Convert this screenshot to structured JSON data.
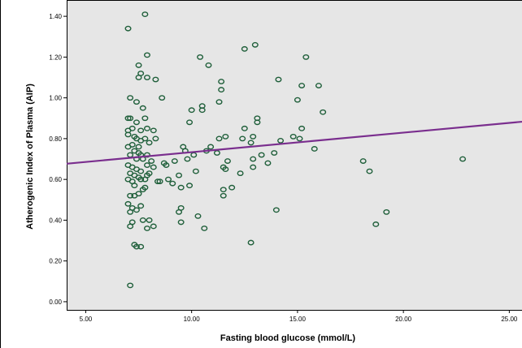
{
  "chart_data": {
    "type": "scatter",
    "xlabel": "Fasting blood glucose (mmol/L)",
    "ylabel": "Atherogenic Index of Plasma (AIP)",
    "xlim": [
      4.1,
      25.6
    ],
    "ylim": [
      -0.04,
      1.48
    ],
    "x_ticks": [
      5.0,
      10.0,
      15.0,
      20.0,
      25.0
    ],
    "x_tick_labels": [
      "5.00",
      "10.00",
      "15.00",
      "20.00",
      "25.00"
    ],
    "y_ticks": [
      0.0,
      0.2,
      0.4,
      0.6,
      0.8,
      1.0,
      1.2,
      1.4
    ],
    "y_tick_labels": [
      "0.00",
      "0.20",
      "0.40",
      "0.60",
      "0.80",
      "1.00",
      "1.20",
      "1.40"
    ],
    "grid": false,
    "colors": {
      "points": "#1f5f3a",
      "fit_line": "#7a2e8e",
      "plot_bg": "#e6e6e6"
    },
    "fit_line": {
      "x": [
        4.1,
        25.6
      ],
      "y": [
        0.677,
        0.883
      ]
    },
    "points": [
      [
        7.0,
        1.34
      ],
      [
        7.8,
        1.41
      ],
      [
        7.9,
        1.21
      ],
      [
        7.5,
        1.16
      ],
      [
        7.6,
        1.12
      ],
      [
        7.9,
        1.1
      ],
      [
        7.5,
        1.1
      ],
      [
        8.3,
        1.09
      ],
      [
        7.1,
        1.0
      ],
      [
        8.6,
        1.0
      ],
      [
        7.4,
        0.98
      ],
      [
        7.7,
        0.95
      ],
      [
        7.0,
        0.9
      ],
      [
        7.1,
        0.9
      ],
      [
        7.4,
        0.88
      ],
      [
        7.6,
        0.84
      ],
      [
        7.8,
        0.9
      ],
      [
        7.9,
        0.85
      ],
      [
        8.2,
        0.84
      ],
      [
        7.2,
        0.85
      ],
      [
        7.0,
        0.84
      ],
      [
        7.0,
        0.82
      ],
      [
        7.3,
        0.81
      ],
      [
        7.4,
        0.8
      ],
      [
        7.6,
        0.79
      ],
      [
        7.8,
        0.8
      ],
      [
        8.0,
        0.78
      ],
      [
        7.2,
        0.77
      ],
      [
        7.5,
        0.76
      ],
      [
        8.3,
        0.8
      ],
      [
        7.0,
        0.76
      ],
      [
        7.3,
        0.74
      ],
      [
        7.5,
        0.73
      ],
      [
        7.6,
        0.72
      ],
      [
        7.9,
        0.72
      ],
      [
        7.1,
        0.72
      ],
      [
        7.4,
        0.7
      ],
      [
        7.7,
        0.7
      ],
      [
        8.1,
        0.69
      ],
      [
        7.0,
        0.67
      ],
      [
        7.2,
        0.66
      ],
      [
        7.4,
        0.65
      ],
      [
        7.6,
        0.64
      ],
      [
        7.9,
        0.67
      ],
      [
        8.2,
        0.66
      ],
      [
        7.1,
        0.63
      ],
      [
        7.3,
        0.62
      ],
      [
        7.5,
        0.61
      ],
      [
        7.8,
        0.6
      ],
      [
        8.0,
        0.63
      ],
      [
        7.0,
        0.6
      ],
      [
        7.2,
        0.59
      ],
      [
        7.6,
        0.6
      ],
      [
        7.8,
        0.56
      ],
      [
        7.1,
        0.52
      ],
      [
        7.3,
        0.52
      ],
      [
        7.5,
        0.53
      ],
      [
        7.7,
        0.55
      ],
      [
        7.0,
        0.48
      ],
      [
        7.2,
        0.46
      ],
      [
        7.1,
        0.44
      ],
      [
        7.4,
        0.45
      ],
      [
        7.6,
        0.47
      ],
      [
        7.7,
        0.4
      ],
      [
        7.9,
        0.36
      ],
      [
        8.2,
        0.37
      ],
      [
        7.2,
        0.39
      ],
      [
        7.1,
        0.37
      ],
      [
        7.3,
        0.28
      ],
      [
        7.4,
        0.27
      ],
      [
        7.6,
        0.27
      ],
      [
        7.1,
        0.08
      ],
      [
        8.4,
        0.59
      ],
      [
        8.5,
        0.59
      ],
      [
        8.7,
        0.68
      ],
      [
        8.8,
        0.67
      ],
      [
        8.9,
        0.6
      ],
      [
        9.1,
        0.58
      ],
      [
        9.2,
        0.69
      ],
      [
        9.4,
        0.62
      ],
      [
        9.5,
        0.56
      ],
      [
        9.6,
        0.76
      ],
      [
        9.7,
        0.74
      ],
      [
        9.8,
        0.7
      ],
      [
        9.9,
        0.88
      ],
      [
        10.0,
        0.94
      ],
      [
        10.1,
        0.72
      ],
      [
        10.2,
        0.64
      ],
      [
        10.3,
        0.42
      ],
      [
        10.6,
        0.36
      ],
      [
        10.4,
        1.2
      ],
      [
        10.5,
        0.94
      ],
      [
        10.5,
        0.96
      ],
      [
        10.7,
        0.74
      ],
      [
        10.9,
        0.76
      ],
      [
        10.8,
        1.16
      ],
      [
        9.5,
        0.46
      ],
      [
        9.4,
        0.44
      ],
      [
        9.9,
        0.57
      ],
      [
        9.5,
        0.39
      ],
      [
        8.0,
        0.4
      ],
      [
        7.9,
        0.62
      ],
      [
        7.3,
        0.57
      ],
      [
        11.3,
        0.98
      ],
      [
        11.4,
        1.08
      ],
      [
        11.4,
        1.04
      ],
      [
        11.3,
        0.8
      ],
      [
        11.6,
        0.81
      ],
      [
        11.5,
        0.66
      ],
      [
        11.6,
        0.65
      ],
      [
        11.7,
        0.69
      ],
      [
        11.5,
        0.55
      ],
      [
        11.5,
        0.52
      ],
      [
        11.2,
        0.73
      ],
      [
        11.9,
        0.56
      ],
      [
        12.3,
        0.63
      ],
      [
        12.4,
        0.8
      ],
      [
        12.5,
        0.85
      ],
      [
        12.5,
        1.24
      ],
      [
        12.8,
        0.78
      ],
      [
        12.9,
        0.66
      ],
      [
        12.9,
        0.81
      ],
      [
        12.9,
        0.7
      ],
      [
        13.0,
        1.26
      ],
      [
        13.1,
        0.9
      ],
      [
        13.1,
        0.88
      ],
      [
        13.3,
        0.72
      ],
      [
        13.6,
        0.68
      ],
      [
        13.9,
        0.73
      ],
      [
        14.1,
        1.09
      ],
      [
        14.2,
        0.79
      ],
      [
        14.0,
        0.45
      ],
      [
        12.8,
        0.29
      ],
      [
        14.8,
        0.81
      ],
      [
        15.0,
        0.99
      ],
      [
        15.1,
        0.8
      ],
      [
        15.2,
        1.06
      ],
      [
        15.2,
        0.85
      ],
      [
        15.4,
        1.2
      ],
      [
        15.8,
        0.75
      ],
      [
        16.0,
        1.06
      ],
      [
        16.2,
        0.93
      ],
      [
        18.1,
        0.69
      ],
      [
        18.4,
        0.64
      ],
      [
        18.7,
        0.38
      ],
      [
        19.2,
        0.44
      ],
      [
        22.8,
        0.7
      ]
    ]
  }
}
